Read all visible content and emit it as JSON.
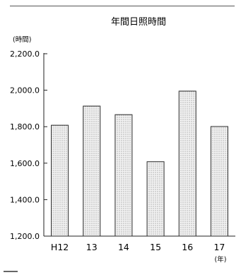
{
  "chart_data": {
    "type": "bar",
    "title": "年間日照時間",
    "ylabel": "(時間)",
    "xlabel": "(年)",
    "categories": [
      "H12",
      "13",
      "14",
      "15",
      "16",
      "17"
    ],
    "values": [
      1808,
      1913,
      1866,
      1608,
      1995,
      1801
    ],
    "ylim": [
      1200,
      2200
    ],
    "yticks": [
      1200,
      1400,
      1600,
      1800,
      2000,
      2200
    ],
    "ytick_labels": [
      "1,200.0",
      "1,400.0",
      "1,600.0",
      "1,800.0",
      "2,000.0",
      "2,200.0"
    ],
    "grid": false,
    "legend": "none",
    "bar_fill": "#d9d9d9",
    "bar_stroke": "#2b2b2b"
  }
}
